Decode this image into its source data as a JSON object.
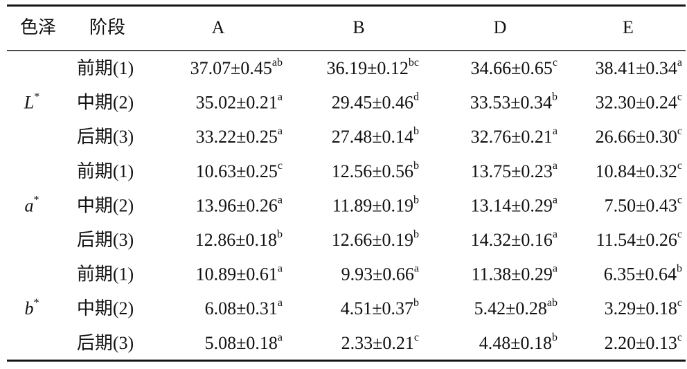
{
  "table": {
    "header": [
      "色泽",
      "阶段",
      "A",
      "B",
      "D",
      "E"
    ],
    "groups": [
      {
        "label": "L",
        "label_sup": "*",
        "rows": [
          {
            "stage": "前期(1)",
            "cells": [
              {
                "value": "37.07±0.45",
                "sup": "ab"
              },
              {
                "value": "36.19±0.12",
                "sup": "bc"
              },
              {
                "value": "34.66±0.65",
                "sup": "c"
              },
              {
                "value": "38.41±0.34",
                "sup": "a"
              }
            ]
          },
          {
            "stage": "中期(2)",
            "cells": [
              {
                "value": "35.02±0.21",
                "sup": "a"
              },
              {
                "value": "29.45±0.46",
                "sup": "d"
              },
              {
                "value": "33.53±0.34",
                "sup": "b"
              },
              {
                "value": "32.30±0.24",
                "sup": "c"
              }
            ]
          },
          {
            "stage": "后期(3)",
            "cells": [
              {
                "value": "33.22±0.25",
                "sup": "a"
              },
              {
                "value": "27.48±0.14",
                "sup": "b"
              },
              {
                "value": "32.76±0.21",
                "sup": "a"
              },
              {
                "value": "26.66±0.30",
                "sup": "c"
              }
            ]
          }
        ]
      },
      {
        "label": "a",
        "label_sup": "*",
        "rows": [
          {
            "stage": "前期(1)",
            "cells": [
              {
                "value": "10.63±0.25",
                "sup": "c"
              },
              {
                "value": "12.56±0.56",
                "sup": "b"
              },
              {
                "value": "13.75±0.23",
                "sup": "a"
              },
              {
                "value": "10.84±0.32",
                "sup": "c"
              }
            ]
          },
          {
            "stage": "中期(2)",
            "cells": [
              {
                "value": "13.96±0.26",
                "sup": "a"
              },
              {
                "value": "11.89±0.19",
                "sup": "b"
              },
              {
                "value": "13.14±0.29",
                "sup": "a"
              },
              {
                "value": "7.50±0.43",
                "sup": "c"
              }
            ]
          },
          {
            "stage": "后期(3)",
            "cells": [
              {
                "value": "12.86±0.18",
                "sup": "b"
              },
              {
                "value": "12.66±0.19",
                "sup": "b"
              },
              {
                "value": "14.32±0.16",
                "sup": "a"
              },
              {
                "value": "11.54±0.26",
                "sup": "c"
              }
            ]
          }
        ]
      },
      {
        "label": "b",
        "label_sup": "*",
        "rows": [
          {
            "stage": "前期(1)",
            "cells": [
              {
                "value": "10.89±0.61",
                "sup": "a"
              },
              {
                "value": "9.93±0.66",
                "sup": "a"
              },
              {
                "value": "11.38±0.29",
                "sup": "a"
              },
              {
                "value": "6.35±0.64",
                "sup": "b"
              }
            ]
          },
          {
            "stage": "中期(2)",
            "cells": [
              {
                "value": "6.08±0.31",
                "sup": "a"
              },
              {
                "value": "4.51±0.37",
                "sup": "b"
              },
              {
                "value": "5.42±0.28",
                "sup": "ab"
              },
              {
                "value": "3.29±0.18",
                "sup": "c"
              }
            ]
          },
          {
            "stage": "后期(3)",
            "cells": [
              {
                "value": "5.08±0.18",
                "sup": "a"
              },
              {
                "value": "2.33±0.21",
                "sup": "c"
              },
              {
                "value": "4.48±0.18",
                "sup": "b"
              },
              {
                "value": "2.20±0.13",
                "sup": "c"
              }
            ]
          }
        ]
      }
    ]
  }
}
